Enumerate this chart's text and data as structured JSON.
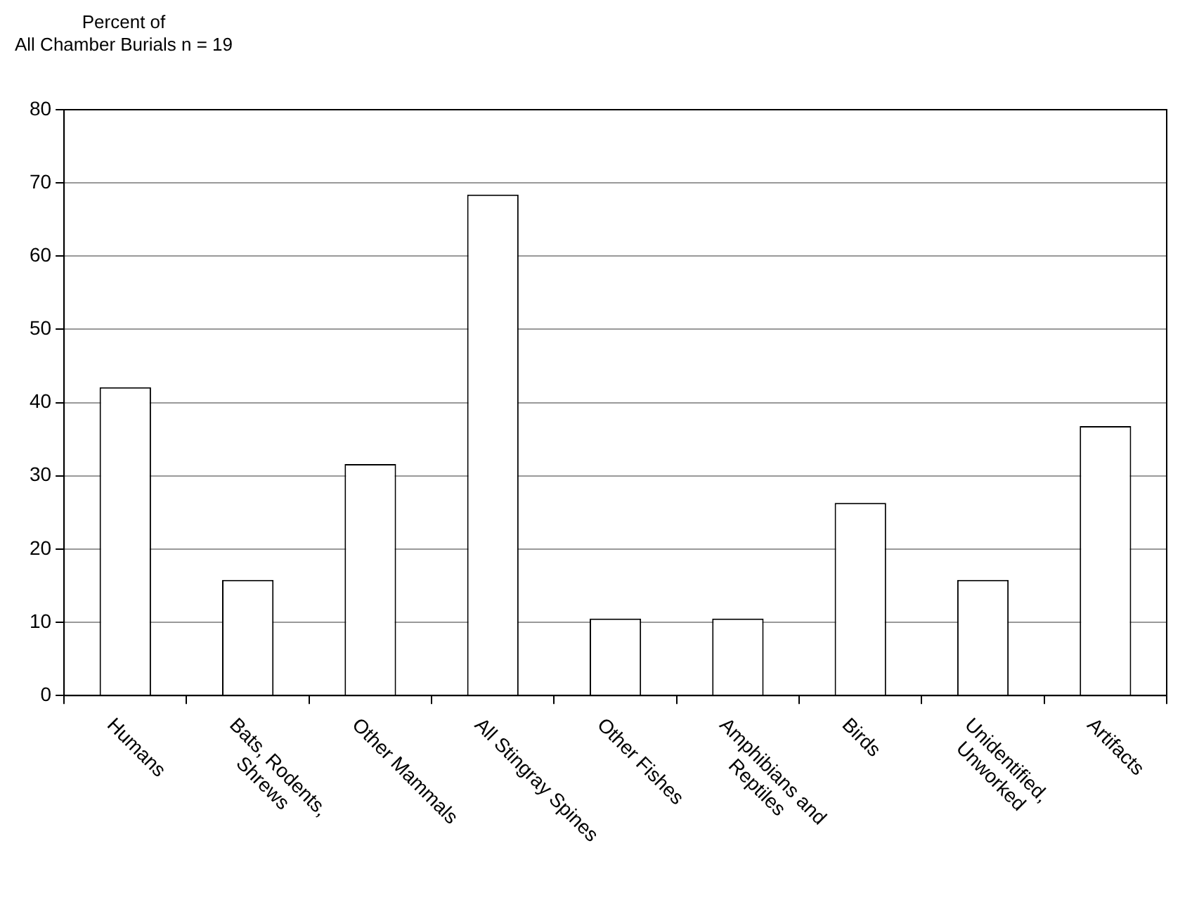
{
  "chart_data": {
    "type": "bar",
    "ylabel": "Percent of\nAll Chamber Burials n = 19",
    "categories": [
      "Humans",
      "Bats, Rodents,\nShrews",
      "Other Mammals",
      "All Stingray Spines",
      "Other Fishes",
      "Amphibians and\nReptiles",
      "Birds",
      "Unidentified,\nUnworked",
      "Artifacts"
    ],
    "values": [
      42.1,
      15.8,
      31.6,
      68.4,
      10.5,
      10.5,
      26.3,
      15.8,
      36.8
    ],
    "color": "#ffffff",
    "ylim": [
      0,
      80
    ],
    "yticks": [
      0,
      10,
      20,
      30,
      40,
      50,
      60,
      70,
      80
    ],
    "grid": "y",
    "legend": false
  }
}
